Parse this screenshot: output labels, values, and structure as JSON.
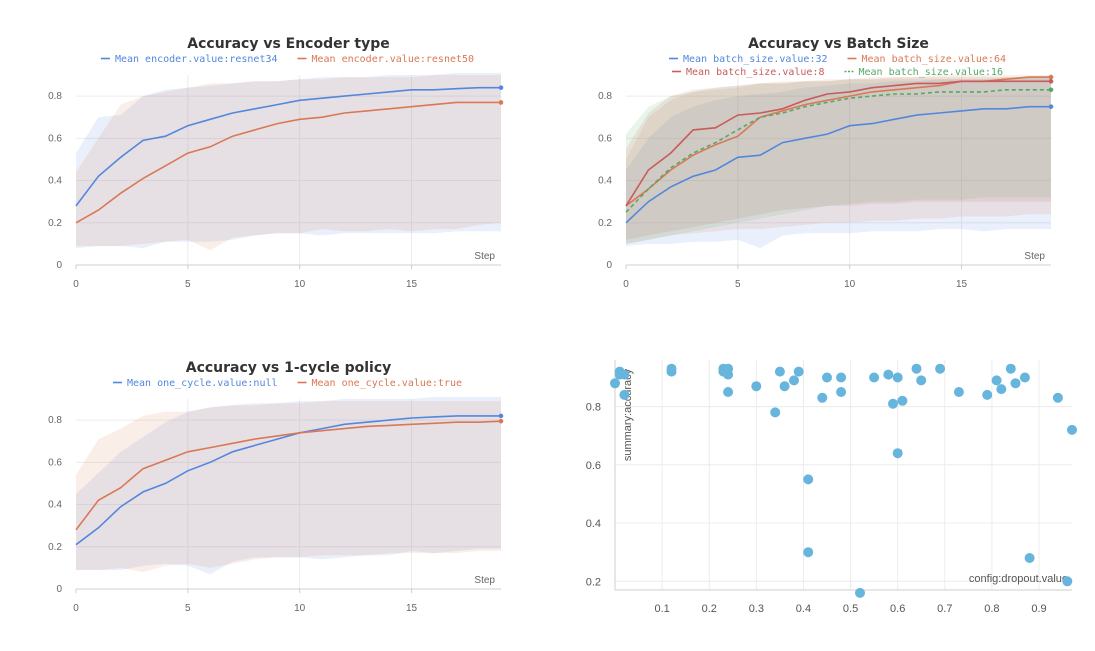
{
  "chart_data": [
    {
      "type": "line",
      "title": "Accuracy vs Encoder type",
      "xlabel": "Step",
      "ylabel": "",
      "xlim": [
        0,
        19
      ],
      "ylim": [
        0,
        0.9
      ],
      "x_ticks": [
        0,
        5,
        10,
        15
      ],
      "y_ticks": [
        0,
        0.2,
        0.4,
        0.6,
        0.8
      ],
      "legend_position": "top",
      "x": [
        0,
        1,
        2,
        3,
        4,
        5,
        6,
        7,
        8,
        9,
        10,
        11,
        12,
        13,
        14,
        15,
        16,
        17,
        18,
        19
      ],
      "series": [
        {
          "name": "Mean encoder.value:resnet34",
          "color": "#5387dd",
          "dash": "solid",
          "values": [
            0.28,
            0.42,
            0.51,
            0.59,
            0.61,
            0.66,
            0.69,
            0.72,
            0.74,
            0.76,
            0.78,
            0.79,
            0.8,
            0.81,
            0.82,
            0.83,
            0.83,
            0.835,
            0.84,
            0.84
          ],
          "band_upper": [
            0.53,
            0.7,
            0.71,
            0.8,
            0.83,
            0.84,
            0.85,
            0.86,
            0.87,
            0.87,
            0.88,
            0.89,
            0.89,
            0.89,
            0.9,
            0.9,
            0.9,
            0.91,
            0.91,
            0.91
          ],
          "band_lower": [
            0.08,
            0.09,
            0.09,
            0.08,
            0.11,
            0.11,
            0.11,
            0.12,
            0.14,
            0.15,
            0.15,
            0.14,
            0.15,
            0.15,
            0.15,
            0.15,
            0.15,
            0.16,
            0.16,
            0.16
          ]
        },
        {
          "name": "Mean encoder.value:resnet50",
          "color": "#da7855",
          "dash": "solid",
          "values": [
            0.2,
            0.26,
            0.34,
            0.41,
            0.47,
            0.53,
            0.56,
            0.61,
            0.64,
            0.67,
            0.69,
            0.7,
            0.72,
            0.73,
            0.74,
            0.75,
            0.76,
            0.77,
            0.77,
            0.77
          ],
          "band_upper": [
            0.44,
            0.6,
            0.76,
            0.8,
            0.82,
            0.84,
            0.86,
            0.86,
            0.87,
            0.87,
            0.88,
            0.88,
            0.89,
            0.89,
            0.89,
            0.89,
            0.9,
            0.9,
            0.9,
            0.9
          ],
          "band_lower": [
            0.09,
            0.09,
            0.09,
            0.1,
            0.11,
            0.12,
            0.07,
            0.13,
            0.14,
            0.15,
            0.15,
            0.17,
            0.16,
            0.16,
            0.17,
            0.16,
            0.17,
            0.17,
            0.19,
            0.2
          ]
        }
      ]
    },
    {
      "type": "line",
      "title": "Accuracy vs Batch Size",
      "xlabel": "Step",
      "ylabel": "",
      "xlim": [
        0,
        19
      ],
      "ylim": [
        0,
        0.9
      ],
      "x_ticks": [
        0,
        5,
        10,
        15
      ],
      "y_ticks": [
        0,
        0.2,
        0.4,
        0.6,
        0.8
      ],
      "legend_position": "top",
      "x": [
        0,
        1,
        2,
        3,
        4,
        5,
        6,
        7,
        8,
        9,
        10,
        11,
        12,
        13,
        14,
        15,
        16,
        17,
        18,
        19
      ],
      "series": [
        {
          "name": "Mean batch_size.value:32",
          "color": "#5387dd",
          "dash": "solid",
          "values": [
            0.2,
            0.3,
            0.37,
            0.42,
            0.45,
            0.51,
            0.52,
            0.58,
            0.6,
            0.62,
            0.66,
            0.67,
            0.69,
            0.71,
            0.72,
            0.73,
            0.74,
            0.74,
            0.75,
            0.75
          ],
          "band_upper": [
            0.45,
            0.6,
            0.7,
            0.75,
            0.78,
            0.8,
            0.81,
            0.82,
            0.84,
            0.85,
            0.86,
            0.86,
            0.87,
            0.87,
            0.88,
            0.88,
            0.88,
            0.88,
            0.89,
            0.89
          ],
          "band_lower": [
            0.09,
            0.1,
            0.1,
            0.11,
            0.11,
            0.12,
            0.08,
            0.14,
            0.15,
            0.15,
            0.15,
            0.16,
            0.16,
            0.16,
            0.17,
            0.17,
            0.16,
            0.17,
            0.17,
            0.17
          ]
        },
        {
          "name": "Mean batch_size.value:64",
          "color": "#da7855",
          "dash": "solid",
          "values": [
            0.28,
            0.36,
            0.45,
            0.52,
            0.57,
            0.61,
            0.7,
            0.73,
            0.76,
            0.78,
            0.8,
            0.82,
            0.83,
            0.84,
            0.85,
            0.87,
            0.87,
            0.88,
            0.89,
            0.89
          ],
          "band_upper": [
            0.5,
            0.7,
            0.78,
            0.82,
            0.83,
            0.84,
            0.86,
            0.87,
            0.87,
            0.88,
            0.88,
            0.89,
            0.89,
            0.89,
            0.9,
            0.9,
            0.9,
            0.9,
            0.9,
            0.9
          ],
          "band_lower": [
            0.1,
            0.12,
            0.14,
            0.15,
            0.16,
            0.17,
            0.17,
            0.18,
            0.19,
            0.2,
            0.2,
            0.21,
            0.21,
            0.22,
            0.22,
            0.23,
            0.23,
            0.23,
            0.24,
            0.24
          ]
        },
        {
          "name": "Mean batch_size.value:8",
          "color": "#c95b5b",
          "dash": "solid",
          "values": [
            0.28,
            0.45,
            0.53,
            0.64,
            0.65,
            0.71,
            0.72,
            0.74,
            0.78,
            0.81,
            0.82,
            0.84,
            0.85,
            0.86,
            0.86,
            0.87,
            0.87,
            0.87,
            0.87,
            0.87
          ],
          "band_upper": [
            0.55,
            0.72,
            0.8,
            0.83,
            0.84,
            0.85,
            0.86,
            0.86,
            0.87,
            0.87,
            0.88,
            0.88,
            0.89,
            0.89,
            0.89,
            0.89,
            0.89,
            0.89,
            0.89,
            0.89
          ],
          "band_lower": [
            0.12,
            0.14,
            0.16,
            0.18,
            0.2,
            0.22,
            0.24,
            0.26,
            0.27,
            0.28,
            0.28,
            0.29,
            0.29,
            0.3,
            0.3,
            0.3,
            0.3,
            0.3,
            0.3,
            0.3
          ]
        },
        {
          "name": "Mean batch_size.value:16",
          "color": "#55a868",
          "dash": "dashed",
          "values": [
            0.25,
            0.36,
            0.46,
            0.53,
            0.58,
            0.64,
            0.7,
            0.72,
            0.75,
            0.77,
            0.79,
            0.8,
            0.81,
            0.81,
            0.82,
            0.82,
            0.82,
            0.83,
            0.83,
            0.83
          ],
          "band_upper": [
            0.62,
            0.75,
            0.8,
            0.82,
            0.84,
            0.85,
            0.86,
            0.86,
            0.87,
            0.87,
            0.88,
            0.88,
            0.88,
            0.88,
            0.88,
            0.88,
            0.88,
            0.89,
            0.89,
            0.89
          ],
          "band_lower": [
            0.1,
            0.12,
            0.14,
            0.16,
            0.18,
            0.2,
            0.22,
            0.24,
            0.26,
            0.28,
            0.29,
            0.3,
            0.3,
            0.31,
            0.31,
            0.31,
            0.32,
            0.32,
            0.32,
            0.32
          ]
        }
      ]
    },
    {
      "type": "line",
      "title": "Accuracy vs 1-cycle policy",
      "xlabel": "Step",
      "ylabel": "",
      "xlim": [
        0,
        19
      ],
      "ylim": [
        0,
        0.9
      ],
      "x_ticks": [
        0,
        5,
        10,
        15
      ],
      "y_ticks": [
        0,
        0.2,
        0.4,
        0.6,
        0.8
      ],
      "legend_position": "top",
      "x": [
        0,
        1,
        2,
        3,
        4,
        5,
        6,
        7,
        8,
        9,
        10,
        11,
        12,
        13,
        14,
        15,
        16,
        17,
        18,
        19
      ],
      "series": [
        {
          "name": "Mean one_cycle.value:null",
          "color": "#5387dd",
          "dash": "solid",
          "values": [
            0.21,
            0.29,
            0.39,
            0.46,
            0.5,
            0.56,
            0.6,
            0.65,
            0.68,
            0.71,
            0.74,
            0.76,
            0.78,
            0.79,
            0.8,
            0.81,
            0.815,
            0.82,
            0.82,
            0.82
          ],
          "band_upper": [
            0.45,
            0.55,
            0.65,
            0.72,
            0.79,
            0.84,
            0.86,
            0.87,
            0.88,
            0.88,
            0.89,
            0.89,
            0.9,
            0.9,
            0.9,
            0.9,
            0.91,
            0.91,
            0.91,
            0.91
          ],
          "band_lower": [
            0.09,
            0.09,
            0.09,
            0.11,
            0.12,
            0.11,
            0.07,
            0.13,
            0.15,
            0.15,
            0.15,
            0.14,
            0.15,
            0.16,
            0.16,
            0.18,
            0.17,
            0.18,
            0.19,
            0.19
          ]
        },
        {
          "name": "Mean one_cycle.value:true",
          "color": "#da7855",
          "dash": "solid",
          "values": [
            0.28,
            0.42,
            0.48,
            0.57,
            0.61,
            0.65,
            0.67,
            0.69,
            0.71,
            0.725,
            0.74,
            0.75,
            0.76,
            0.77,
            0.775,
            0.78,
            0.785,
            0.79,
            0.79,
            0.795
          ],
          "band_upper": [
            0.54,
            0.71,
            0.76,
            0.82,
            0.84,
            0.84,
            0.86,
            0.87,
            0.87,
            0.88,
            0.88,
            0.89,
            0.89,
            0.89,
            0.89,
            0.89,
            0.89,
            0.89,
            0.89,
            0.89
          ],
          "band_lower": [
            0.09,
            0.09,
            0.1,
            0.08,
            0.11,
            0.12,
            0.1,
            0.12,
            0.14,
            0.15,
            0.15,
            0.16,
            0.16,
            0.16,
            0.17,
            0.17,
            0.17,
            0.17,
            0.18,
            0.18
          ]
        }
      ]
    },
    {
      "type": "scatter",
      "title": "",
      "xlabel": "config:dropout.value",
      "ylabel": "summary:accuracy",
      "xlim": [
        0.0,
        0.97
      ],
      "ylim": [
        0.17,
        0.96
      ],
      "x_ticks": [
        0.1,
        0.2,
        0.3,
        0.4,
        0.5,
        0.6,
        0.7,
        0.8,
        0.9
      ],
      "y_ticks": [
        0.2,
        0.4,
        0.6,
        0.8
      ],
      "color": "#67b5dc",
      "points": [
        [
          0.0,
          0.88
        ],
        [
          0.01,
          0.91
        ],
        [
          0.01,
          0.92
        ],
        [
          0.02,
          0.91
        ],
        [
          0.02,
          0.84
        ],
        [
          0.12,
          0.92
        ],
        [
          0.12,
          0.93
        ],
        [
          0.23,
          0.93
        ],
        [
          0.23,
          0.92
        ],
        [
          0.24,
          0.93
        ],
        [
          0.24,
          0.91
        ],
        [
          0.24,
          0.85
        ],
        [
          0.3,
          0.87
        ],
        [
          0.34,
          0.78
        ],
        [
          0.35,
          0.92
        ],
        [
          0.36,
          0.87
        ],
        [
          0.38,
          0.89
        ],
        [
          0.39,
          0.92
        ],
        [
          0.41,
          0.55
        ],
        [
          0.41,
          0.3
        ],
        [
          0.44,
          0.83
        ],
        [
          0.45,
          0.9
        ],
        [
          0.48,
          0.85
        ],
        [
          0.48,
          0.9
        ],
        [
          0.52,
          0.16
        ],
        [
          0.55,
          0.9
        ],
        [
          0.58,
          0.91
        ],
        [
          0.59,
          0.81
        ],
        [
          0.6,
          0.9
        ],
        [
          0.6,
          0.64
        ],
        [
          0.61,
          0.82
        ],
        [
          0.64,
          0.93
        ],
        [
          0.65,
          0.89
        ],
        [
          0.69,
          0.93
        ],
        [
          0.73,
          0.85
        ],
        [
          0.79,
          0.84
        ],
        [
          0.81,
          0.89
        ],
        [
          0.82,
          0.86
        ],
        [
          0.84,
          0.93
        ],
        [
          0.85,
          0.88
        ],
        [
          0.87,
          0.9
        ],
        [
          0.88,
          0.28
        ],
        [
          0.94,
          0.83
        ],
        [
          0.96,
          0.2
        ],
        [
          0.97,
          0.72
        ]
      ]
    }
  ]
}
